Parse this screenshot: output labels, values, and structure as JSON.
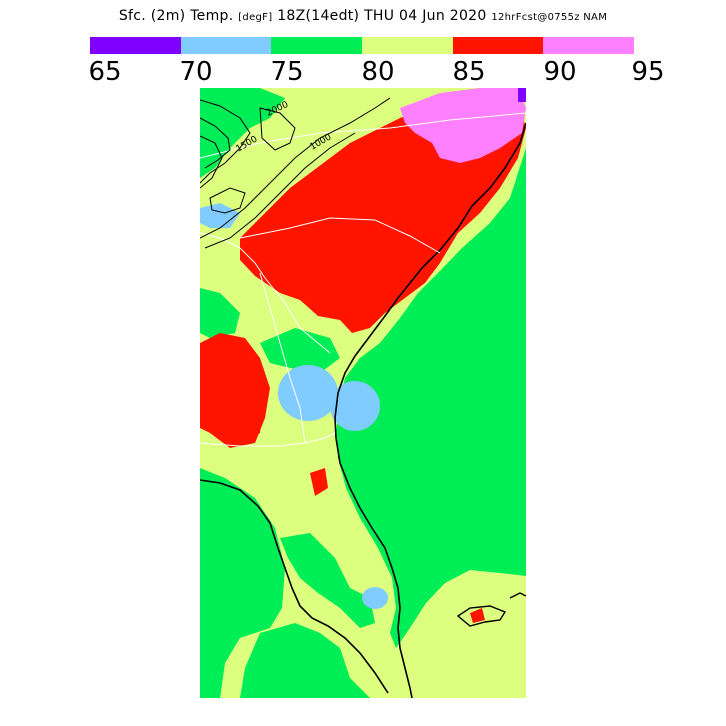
{
  "header": {
    "title_main": "Sfc. (2m) Temp.",
    "units": "[degF]",
    "valid": "18Z(14edt) THU 04 Jun 2020",
    "forecast": "12hrFcst@0755z NAM"
  },
  "legend": {
    "bins": [
      {
        "from": "65",
        "to": "70",
        "color": "#8000ff"
      },
      {
        "from": "70",
        "to": "75",
        "color": "#80ccff"
      },
      {
        "from": "75",
        "to": "80",
        "color": "#00ee55"
      },
      {
        "from": "80",
        "to": "85",
        "color": "#ddff80"
      },
      {
        "from": "85",
        "to": "90",
        "color": "#ff1400"
      },
      {
        "from": "90",
        "to": "95",
        "color": "#ff80ff"
      }
    ],
    "labels": [
      "65",
      "70",
      "75",
      "80",
      "85",
      "90",
      "95"
    ]
  },
  "map": {
    "contour_labels": [
      "2000",
      "1000",
      "1500"
    ]
  },
  "colors": {
    "background": "#ffffff",
    "ocean": "#00ee55",
    "coastline": "#000000",
    "state_borders": "#ffffff"
  }
}
